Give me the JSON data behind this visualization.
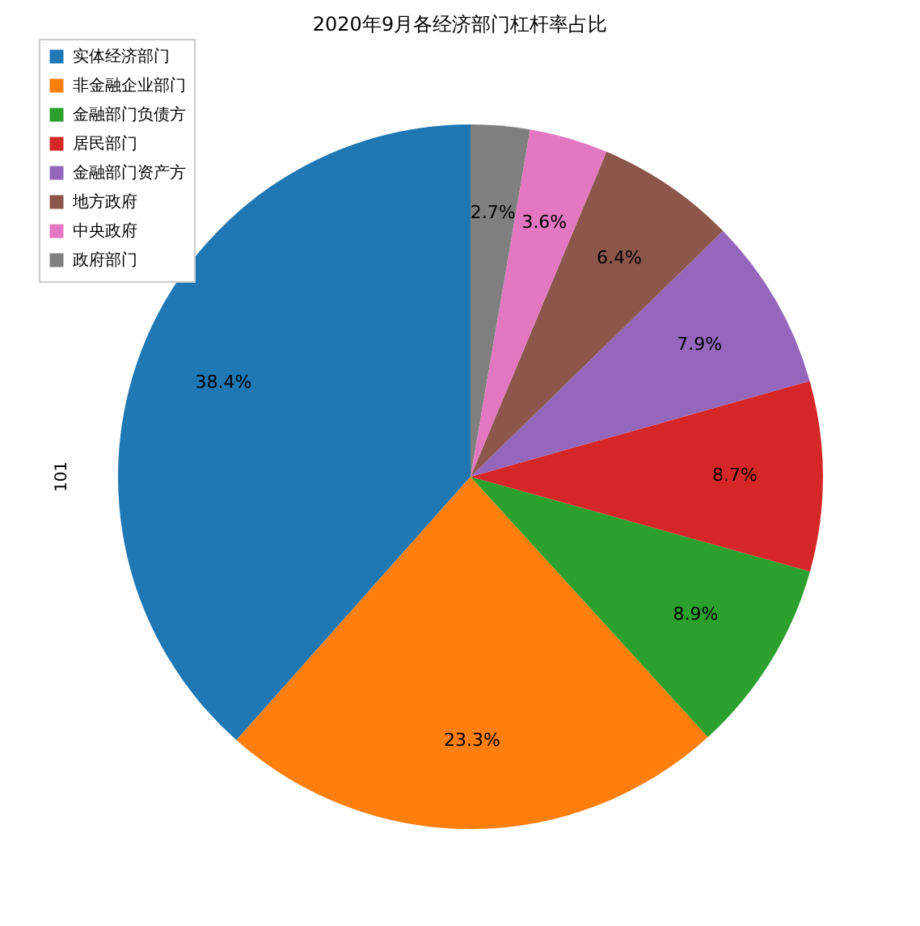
{
  "chart_data": {
    "type": "pie",
    "title": "2020年9月各经济部门杠杆率占比",
    "ylabel": "101",
    "categories": [
      "实体经济部门",
      "非金融企业部门",
      "金融部门负债方",
      "居民部门",
      "金融部门资产方",
      "地方政府",
      "中央政府",
      "政府部门"
    ],
    "values": [
      38.4,
      23.3,
      8.9,
      8.7,
      7.9,
      6.4,
      3.6,
      2.7
    ],
    "value_labels": [
      "38.4%",
      "23.3%",
      "8.9%",
      "8.7%",
      "7.9%",
      "6.4%",
      "3.6%",
      "2.7%"
    ],
    "colors": [
      "#1f77b4",
      "#ff7f0e",
      "#2ca02c",
      "#d62728",
      "#9467bd",
      "#8c564b",
      "#e377c2",
      "#7f7f7f"
    ],
    "legend": "top left"
  }
}
